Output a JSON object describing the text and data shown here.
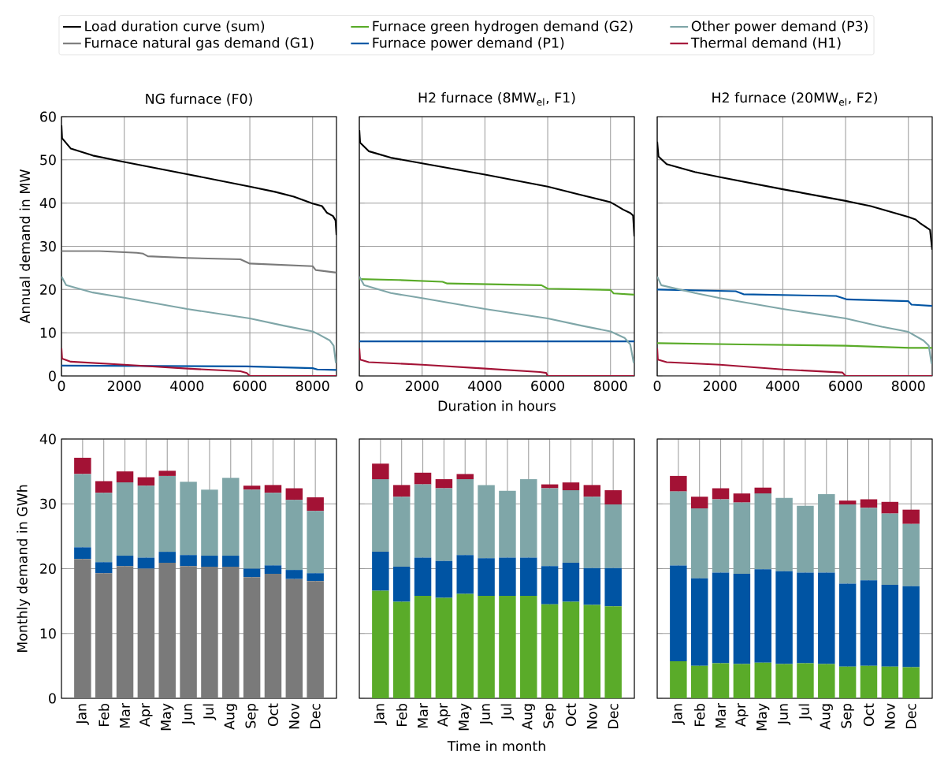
{
  "chart_data": [
    {
      "type": "line",
      "title": "NG furnace (F0)",
      "ylabel": "Annual demand in MW",
      "xlim": [
        0,
        8760
      ],
      "ylim": [
        0,
        60
      ],
      "xticks": [
        0,
        2000,
        4000,
        6000,
        8000
      ],
      "yticks": [
        0,
        10,
        20,
        30,
        40,
        50,
        60
      ],
      "grid": true,
      "legend": "top",
      "series": [
        {
          "name": "Load duration curve (sum)",
          "color": "#000000",
          "x": [
            0,
            20,
            300,
            1000,
            2000,
            4000,
            6000,
            6800,
            7400,
            8000,
            8300,
            8450,
            8650,
            8730,
            8760
          ],
          "values": [
            58,
            55,
            52.6,
            51,
            49.5,
            46.7,
            43.8,
            42.6,
            41.5,
            39.9,
            39.3,
            37.8,
            37,
            36,
            32.6
          ]
        },
        {
          "name": "Furnace natural gas demand (G1)",
          "color": "#7a7a7a",
          "x": [
            0,
            1200,
            2400,
            2600,
            2750,
            4000,
            5700,
            6000,
            8000,
            8100,
            8760
          ],
          "values": [
            28.9,
            28.9,
            28.5,
            28.3,
            27.7,
            27.3,
            27.0,
            26.0,
            25.4,
            24.5,
            23.9
          ]
        },
        {
          "name": "Furnace power demand (P1)",
          "color": "#0054a3",
          "x": [
            0,
            5900,
            8000,
            8150,
            8760
          ],
          "values": [
            2.4,
            2.2,
            1.8,
            1.5,
            1.4
          ]
        },
        {
          "name": "Other power demand (P3)",
          "color": "#7fa6a8",
          "x": [
            0,
            150,
            1000,
            2000,
            4000,
            6000,
            7100,
            8000,
            8200,
            8550,
            8670,
            8740
          ],
          "values": [
            23,
            21,
            19.3,
            18.1,
            15.5,
            13.3,
            11.6,
            10.3,
            9.6,
            8.2,
            7,
            3
          ]
        },
        {
          "name": "Thermal demand (H1)",
          "color": "#a31235",
          "x": [
            0,
            20,
            300,
            2000,
            4000,
            5700,
            5900,
            6000,
            8760
          ],
          "values": [
            6.4,
            4,
            3.3,
            2.6,
            1.7,
            1.1,
            0.7,
            0,
            0
          ]
        }
      ]
    },
    {
      "type": "line",
      "title": "H2 furnace (8MW$_{el}$, F1)",
      "xlabel": "Duration in hours",
      "xlim": [
        0,
        8760
      ],
      "ylim": [
        0,
        60
      ],
      "xticks": [
        0,
        2000,
        4000,
        6000,
        8000
      ],
      "yticks": [
        0,
        10,
        20,
        30,
        40,
        50,
        60
      ],
      "grid": true,
      "tick_labels": "x",
      "series": [
        {
          "color": "#000000",
          "x": [
            0,
            25,
            300,
            1000,
            2000,
            4000,
            6000,
            7000,
            8000,
            8150,
            8400,
            8630,
            8720,
            8760
          ],
          "values": [
            56.9,
            54,
            52,
            50.5,
            49.2,
            46.6,
            43.8,
            42,
            40.2,
            39.6,
            38.5,
            37.7,
            37.1,
            32.3
          ]
        },
        {
          "name": "Furnace green hydrogen demand (G2)",
          "color": "#5aab29",
          "x": [
            0,
            1250,
            2650,
            2800,
            5800,
            6000,
            8000,
            8100,
            8760
          ],
          "values": [
            22.4,
            22.2,
            21.8,
            21.4,
            21.0,
            20.2,
            19.9,
            19.1,
            18.8
          ]
        },
        {
          "color": "#0054a3",
          "x": [
            0,
            8760
          ],
          "values": [
            8,
            8
          ]
        },
        {
          "color": "#7fa6a8",
          "x": [
            0,
            150,
            1000,
            2000,
            4000,
            6000,
            7100,
            8000,
            8450,
            8630,
            8740
          ],
          "values": [
            23,
            21,
            19.2,
            18,
            15.5,
            13.3,
            11.6,
            10.3,
            8.8,
            7.3,
            3
          ]
        },
        {
          "color": "#a31235",
          "x": [
            0,
            25,
            300,
            2000,
            4000,
            5750,
            5950,
            6000,
            8760
          ],
          "values": [
            6.4,
            3.8,
            3.2,
            2.6,
            1.7,
            0.9,
            0.7,
            0,
            0
          ]
        }
      ]
    },
    {
      "type": "line",
      "title": "H2 furnace (20MW$_{el}$, F2)",
      "xlim": [
        0,
        8760
      ],
      "ylim": [
        0,
        60
      ],
      "xticks": [
        0,
        2000,
        4000,
        6000,
        8000
      ],
      "yticks": [
        0,
        10,
        20,
        30,
        40,
        50,
        60
      ],
      "grid": true,
      "tick_labels": "x",
      "series": [
        {
          "color": "#000000",
          "x": [
            0,
            40,
            300,
            1200,
            2000,
            4000,
            6000,
            6800,
            8000,
            8230,
            8400,
            8690,
            8760
          ],
          "values": [
            54.2,
            50.8,
            49,
            47.2,
            46,
            43.2,
            40.5,
            39.3,
            36.8,
            36.2,
            35.2,
            33.8,
            29.2
          ]
        },
        {
          "color": "#5aab29",
          "x": [
            0,
            2700,
            6000,
            8050,
            8760
          ],
          "values": [
            7.6,
            7.3,
            7.0,
            6.5,
            6.5
          ]
        },
        {
          "color": "#0054a3",
          "x": [
            0,
            2500,
            2750,
            5700,
            6050,
            8000,
            8100,
            8760
          ],
          "values": [
            20,
            19.6,
            18.9,
            18.5,
            17.7,
            17.3,
            16.5,
            16.2
          ]
        },
        {
          "color": "#7fa6a8",
          "x": [
            0,
            130,
            1200,
            2000,
            4000,
            6000,
            7150,
            8000,
            8480,
            8650,
            8740
          ],
          "values": [
            23,
            21,
            19.2,
            18,
            15.5,
            13.3,
            11.4,
            10.2,
            8.2,
            7,
            2.8
          ]
        },
        {
          "color": "#a31235",
          "x": [
            0,
            20,
            300,
            2000,
            4000,
            5900,
            6000,
            8760
          ],
          "values": [
            6.4,
            3.8,
            3.2,
            2.6,
            1.5,
            0.8,
            0,
            0
          ]
        }
      ]
    },
    {
      "type": "bar",
      "stacked": true,
      "ylabel": "Monthly demand in GWh",
      "categories": [
        "Jan",
        "Feb",
        "Mar",
        "Apr",
        "May",
        "Jun",
        "Jul",
        "Aug",
        "Sep",
        "Oct",
        "Nov",
        "Dec"
      ],
      "ylim": [
        0,
        40
      ],
      "yticks": [
        0,
        10,
        20,
        30,
        40
      ],
      "grid": true,
      "series": [
        {
          "color": "#7a7a7a",
          "values": [
            21.5,
            19.3,
            20.4,
            20.0,
            20.9,
            20.4,
            20.3,
            20.3,
            18.7,
            19.2,
            18.4,
            18.1
          ]
        },
        {
          "color": "#0054a3",
          "values": [
            1.8,
            1.7,
            1.6,
            1.7,
            1.7,
            1.7,
            1.7,
            1.7,
            1.3,
            1.3,
            1.4,
            1.2
          ]
        },
        {
          "color": "#7fa6a8",
          "values": [
            11.3,
            10.7,
            11.3,
            11.1,
            11.7,
            11.3,
            10.2,
            12.0,
            12.2,
            11.2,
            10.8,
            9.6
          ]
        },
        {
          "color": "#a31235",
          "values": [
            2.5,
            1.8,
            1.7,
            1.3,
            0.8,
            0,
            0,
            0,
            0.6,
            1.2,
            1.8,
            2.1
          ]
        }
      ]
    },
    {
      "type": "bar",
      "stacked": true,
      "xlabel": "Time in month",
      "categories": [
        "Jan",
        "Feb",
        "Mar",
        "Apr",
        "May",
        "Jun",
        "Jul",
        "Aug",
        "Sep",
        "Oct",
        "Nov",
        "Dec"
      ],
      "ylim": [
        0,
        40
      ],
      "yticks": [
        0,
        10,
        20,
        30,
        40
      ],
      "grid": true,
      "tick_labels": "x",
      "series": [
        {
          "color": "#5aab29",
          "values": [
            16.6,
            14.9,
            15.8,
            15.5,
            16.1,
            15.8,
            15.8,
            15.8,
            14.5,
            14.9,
            14.4,
            14.2
          ]
        },
        {
          "color": "#0054a3",
          "values": [
            6.0,
            5.4,
            5.9,
            5.7,
            6.0,
            5.8,
            5.9,
            5.9,
            5.9,
            6.0,
            5.7,
            5.9
          ]
        },
        {
          "color": "#7fa6a8",
          "values": [
            11.2,
            10.8,
            11.3,
            11.2,
            11.7,
            11.3,
            10.3,
            12.1,
            12.0,
            11.2,
            11.0,
            9.8
          ]
        },
        {
          "color": "#a31235",
          "values": [
            2.4,
            1.8,
            1.8,
            1.4,
            0.8,
            0,
            0,
            0,
            0.6,
            1.2,
            1.8,
            2.2
          ]
        }
      ]
    },
    {
      "type": "bar",
      "stacked": true,
      "categories": [
        "Jan",
        "Feb",
        "Mar",
        "Apr",
        "May",
        "Jun",
        "Jul",
        "Aug",
        "Sep",
        "Oct",
        "Nov",
        "Dec"
      ],
      "ylim": [
        0,
        40
      ],
      "yticks": [
        0,
        10,
        20,
        30,
        40
      ],
      "grid": true,
      "tick_labels": "x",
      "series": [
        {
          "color": "#5aab29",
          "values": [
            5.7,
            5.0,
            5.4,
            5.3,
            5.5,
            5.3,
            5.4,
            5.3,
            4.9,
            5.0,
            4.9,
            4.8
          ]
        },
        {
          "color": "#0054a3",
          "values": [
            14.8,
            13.5,
            14.0,
            13.9,
            14.4,
            14.3,
            14.0,
            14.1,
            12.8,
            13.2,
            12.6,
            12.5
          ]
        },
        {
          "color": "#7fa6a8",
          "values": [
            11.4,
            10.8,
            11.3,
            11.0,
            11.7,
            11.3,
            10.3,
            12.1,
            12.2,
            11.2,
            11.0,
            9.6
          ]
        },
        {
          "color": "#a31235",
          "values": [
            2.4,
            1.8,
            1.7,
            1.4,
            0.9,
            0,
            0,
            0,
            0.6,
            1.3,
            1.8,
            2.2
          ]
        }
      ]
    }
  ]
}
